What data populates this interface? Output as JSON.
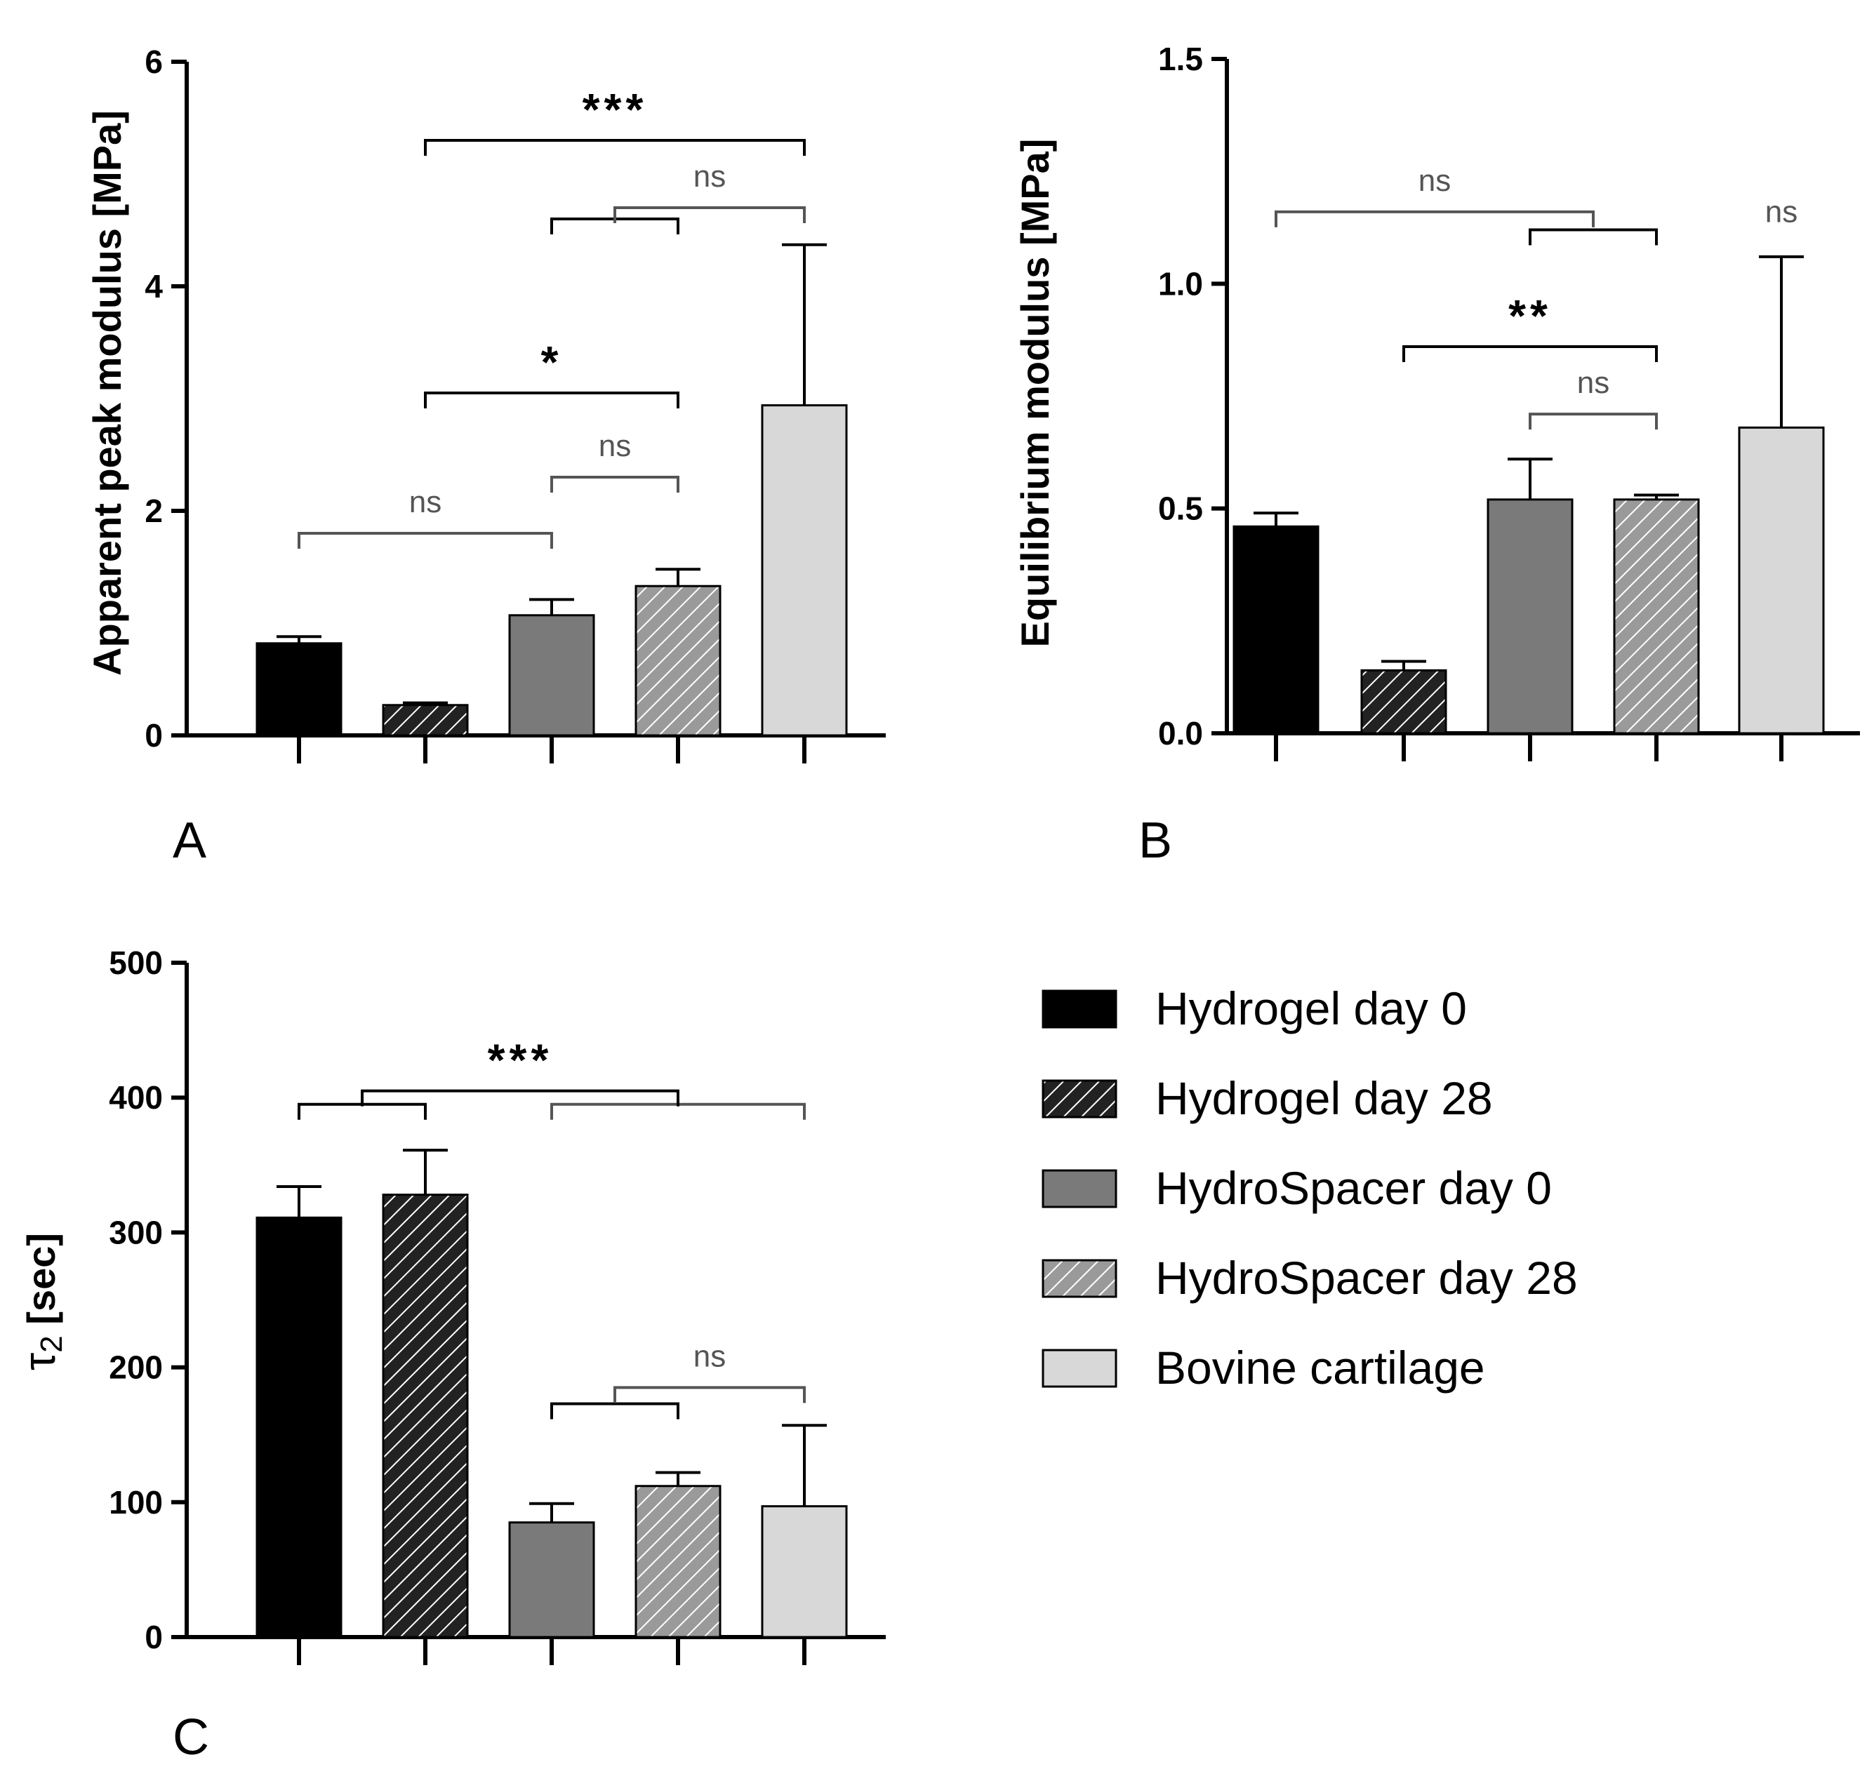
{
  "colors": {
    "hydrogel_day0": "#000000",
    "hydrogel_day28": "#222222",
    "hydrospacer_day0": "#7a7a7a",
    "hydrospacer_day28": "#9a9a9a",
    "bovine": "#d8d8d8",
    "axis": "#000000",
    "ns_bracket": "#555555"
  },
  "legend": [
    {
      "key": "hydrogel_day0",
      "label": "Hydrogel day 0",
      "hatched": false
    },
    {
      "key": "hydrogel_day28",
      "label": "Hydrogel day 28",
      "hatched": true
    },
    {
      "key": "hydrospacer_day0",
      "label": "HydroSpacer day 0",
      "hatched": false
    },
    {
      "key": "hydrospacer_day28",
      "label": "HydroSpacer day 28",
      "hatched": true
    },
    {
      "key": "bovine",
      "label": "Bovine cartilage",
      "hatched": false
    }
  ],
  "chart_data": [
    {
      "panel": "A",
      "type": "bar",
      "ylabel": "Apparent peak modulus [MPa]",
      "ylim": [
        0,
        6
      ],
      "yticks": [
        "0",
        "2",
        "4",
        "6"
      ],
      "categories": [
        "Hydrogel day 0",
        "Hydrogel day 28",
        "HydroSpacer day 0",
        "HydroSpacer day 28",
        "Bovine cartilage"
      ],
      "values": [
        0.82,
        0.27,
        1.07,
        1.33,
        2.94
      ],
      "errors": [
        0.06,
        0.02,
        0.14,
        0.15,
        1.43
      ],
      "significance": [
        {
          "from": 0,
          "to": 2,
          "label": "ns",
          "level": 1.8
        },
        {
          "from": 2,
          "to": 3,
          "label": "ns",
          "level": 2.3
        },
        {
          "from": 1,
          "to": 3,
          "label": "*",
          "level": 3.05
        },
        {
          "from": 2.5,
          "to": 4,
          "label": "ns",
          "level": 4.7,
          "sub": {
            "from": 2,
            "to": 3,
            "level": 4.6
          }
        },
        {
          "from": 1,
          "to": 4,
          "label": "***",
          "level": 5.3
        }
      ]
    },
    {
      "panel": "B",
      "type": "bar",
      "ylabel": "Equilibrium modulus [MPa]",
      "ylim": [
        0,
        1.5
      ],
      "yticks": [
        "0.0",
        "0.5",
        "1.0",
        "1.5"
      ],
      "categories": [
        "Hydrogel day 0",
        "Hydrogel day 28",
        "HydroSpacer day 0",
        "HydroSpacer day 28",
        "Bovine cartilage"
      ],
      "values": [
        0.46,
        0.14,
        0.52,
        0.52,
        0.68
      ],
      "errors": [
        0.03,
        0.02,
        0.09,
        0.01,
        0.38
      ],
      "significance": [
        {
          "from": 2,
          "to": 3,
          "label": "ns",
          "level": 0.71
        },
        {
          "from": 1,
          "to": 3,
          "label": "**",
          "level": 0.86
        },
        {
          "from": 0,
          "to": 2.5,
          "label": "ns",
          "level": 1.16,
          "sub": {
            "from": 2,
            "to": 3,
            "level": 1.12
          }
        },
        {
          "from": 4,
          "to": 4,
          "label": "ns",
          "level": 1.09,
          "above_only": true
        }
      ]
    },
    {
      "panel": "C",
      "type": "bar",
      "ylabel": "τ2 [sec]",
      "ylabel_main": "τ",
      "ylabel_sub": "2",
      "ylabel_rest": " [sec]",
      "ylim": [
        0,
        500
      ],
      "yticks": [
        "0",
        "100",
        "200",
        "300",
        "400",
        "500"
      ],
      "categories": [
        "Hydrogel day 0",
        "Hydrogel day 28",
        "HydroSpacer day 0",
        "HydroSpacer day 28",
        "Bovine cartilage"
      ],
      "values": [
        311,
        328,
        85,
        112,
        97
      ],
      "errors": [
        23,
        33,
        14,
        10,
        60
      ],
      "significance": [
        {
          "from": 2,
          "to": 3,
          "label": "",
          "level": 173
        },
        {
          "from": 2.5,
          "to": 4,
          "label": "ns",
          "level": 185
        },
        {
          "from": 0,
          "to": 1,
          "label": "",
          "level": 395
        },
        {
          "from": 2,
          "to": 4,
          "label": "",
          "level": 395,
          "gray": true
        },
        {
          "from": 0.5,
          "to": 3,
          "label": "***",
          "level": 405
        }
      ]
    }
  ]
}
